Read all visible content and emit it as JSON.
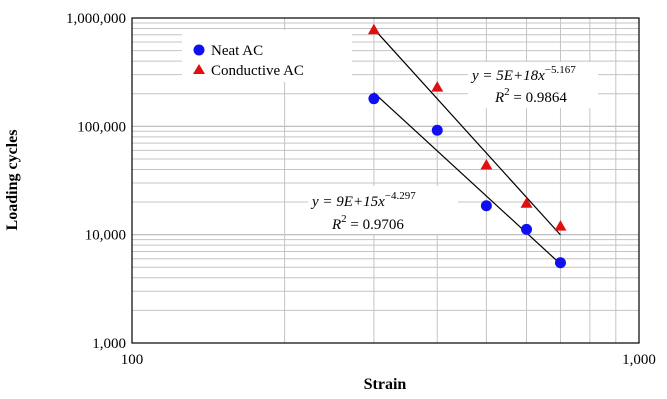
{
  "chart_data": {
    "type": "scatter",
    "xlabel": "Strain",
    "ylabel": "Loading cycles",
    "x_scale": "log",
    "y_scale": "log",
    "xlim": [
      100,
      1000
    ],
    "ylim": [
      1000,
      1000000
    ],
    "x_ticks": [
      "100",
      "1,000"
    ],
    "y_ticks": [
      "1,000",
      "10,000",
      "100,000",
      "1,000,000"
    ],
    "grid": true,
    "legend_position": "top-left",
    "series": [
      {
        "name": "Neat AC",
        "marker": "circle",
        "color": "#1010ee",
        "x": [
          300,
          400,
          500,
          600,
          700
        ],
        "y": [
          180000,
          92000,
          18500,
          11200,
          5500
        ],
        "trendline": {
          "a": 9000000000000000.0,
          "b": -4.297,
          "equation_prefix": "y = 9E+15x",
          "exponent": "−4.297",
          "r2_label": "R",
          "r2_value": " = 0.9706"
        }
      },
      {
        "name": "Conductive AC",
        "marker": "triangle",
        "color": "#e01010",
        "x": [
          300,
          400,
          500,
          600,
          700
        ],
        "y": [
          780000,
          230000,
          44000,
          19500,
          12000
        ],
        "trendline": {
          "a": 5e+18,
          "b": -5.167,
          "equation_prefix": "y = 5E+18x",
          "exponent": "−5.167",
          "r2_label": "R",
          "r2_value": " = 0.9864"
        }
      }
    ]
  }
}
